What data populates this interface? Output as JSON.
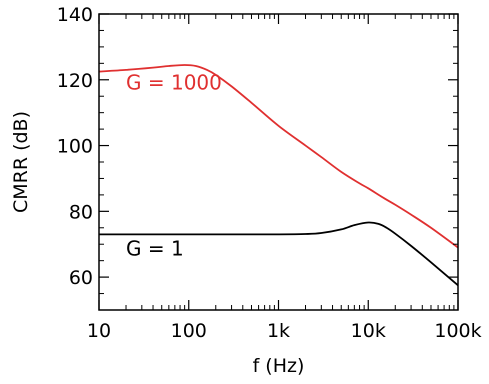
{
  "chart_data": {
    "type": "line",
    "title": "",
    "xlabel": "f (Hz)",
    "ylabel": "CMRR (dB)",
    "xscale": "log",
    "xlim": [
      10,
      100000
    ],
    "ylim": [
      50,
      140
    ],
    "grid": false,
    "xticks": [
      {
        "value": 10,
        "label": "10"
      },
      {
        "value": 100,
        "label": "100"
      },
      {
        "value": 1000,
        "label": "1k"
      },
      {
        "value": 10000,
        "label": "10k"
      },
      {
        "value": 100000,
        "label": "100k"
      }
    ],
    "yticks": [
      {
        "value": 60,
        "label": "60"
      },
      {
        "value": 80,
        "label": "80"
      },
      {
        "value": 100,
        "label": "100"
      },
      {
        "value": 120,
        "label": "120"
      },
      {
        "value": 140,
        "label": "140"
      }
    ],
    "series": [
      {
        "name": "G = 1000",
        "color": "#e03030",
        "label_at": {
          "x": 20,
          "y": 117
        },
        "x": [
          10,
          20,
          40,
          60,
          90,
          120,
          160,
          200,
          300,
          500,
          1000,
          2000,
          3000,
          5000,
          8000,
          10000,
          15000,
          20000,
          30000,
          50000,
          100000
        ],
        "y": [
          122.5,
          123,
          123.7,
          124.2,
          124.5,
          124.2,
          123,
          121.5,
          118,
          113,
          106,
          100,
          96.5,
          92,
          88.5,
          87,
          84,
          82,
          79,
          75,
          69
        ]
      },
      {
        "name": "G = 1",
        "color": "#000000",
        "label_at": {
          "x": 20,
          "y": 66.5
        },
        "x": [
          10,
          30,
          100,
          300,
          1000,
          2000,
          3000,
          5000,
          7000,
          10000,
          13000,
          16000,
          20000,
          30000,
          50000,
          100000
        ],
        "y": [
          73,
          73,
          73,
          73,
          73,
          73.1,
          73.4,
          74.5,
          75.8,
          76.6,
          76.2,
          75,
          73.2,
          69.5,
          64.5,
          57.5
        ]
      }
    ]
  }
}
